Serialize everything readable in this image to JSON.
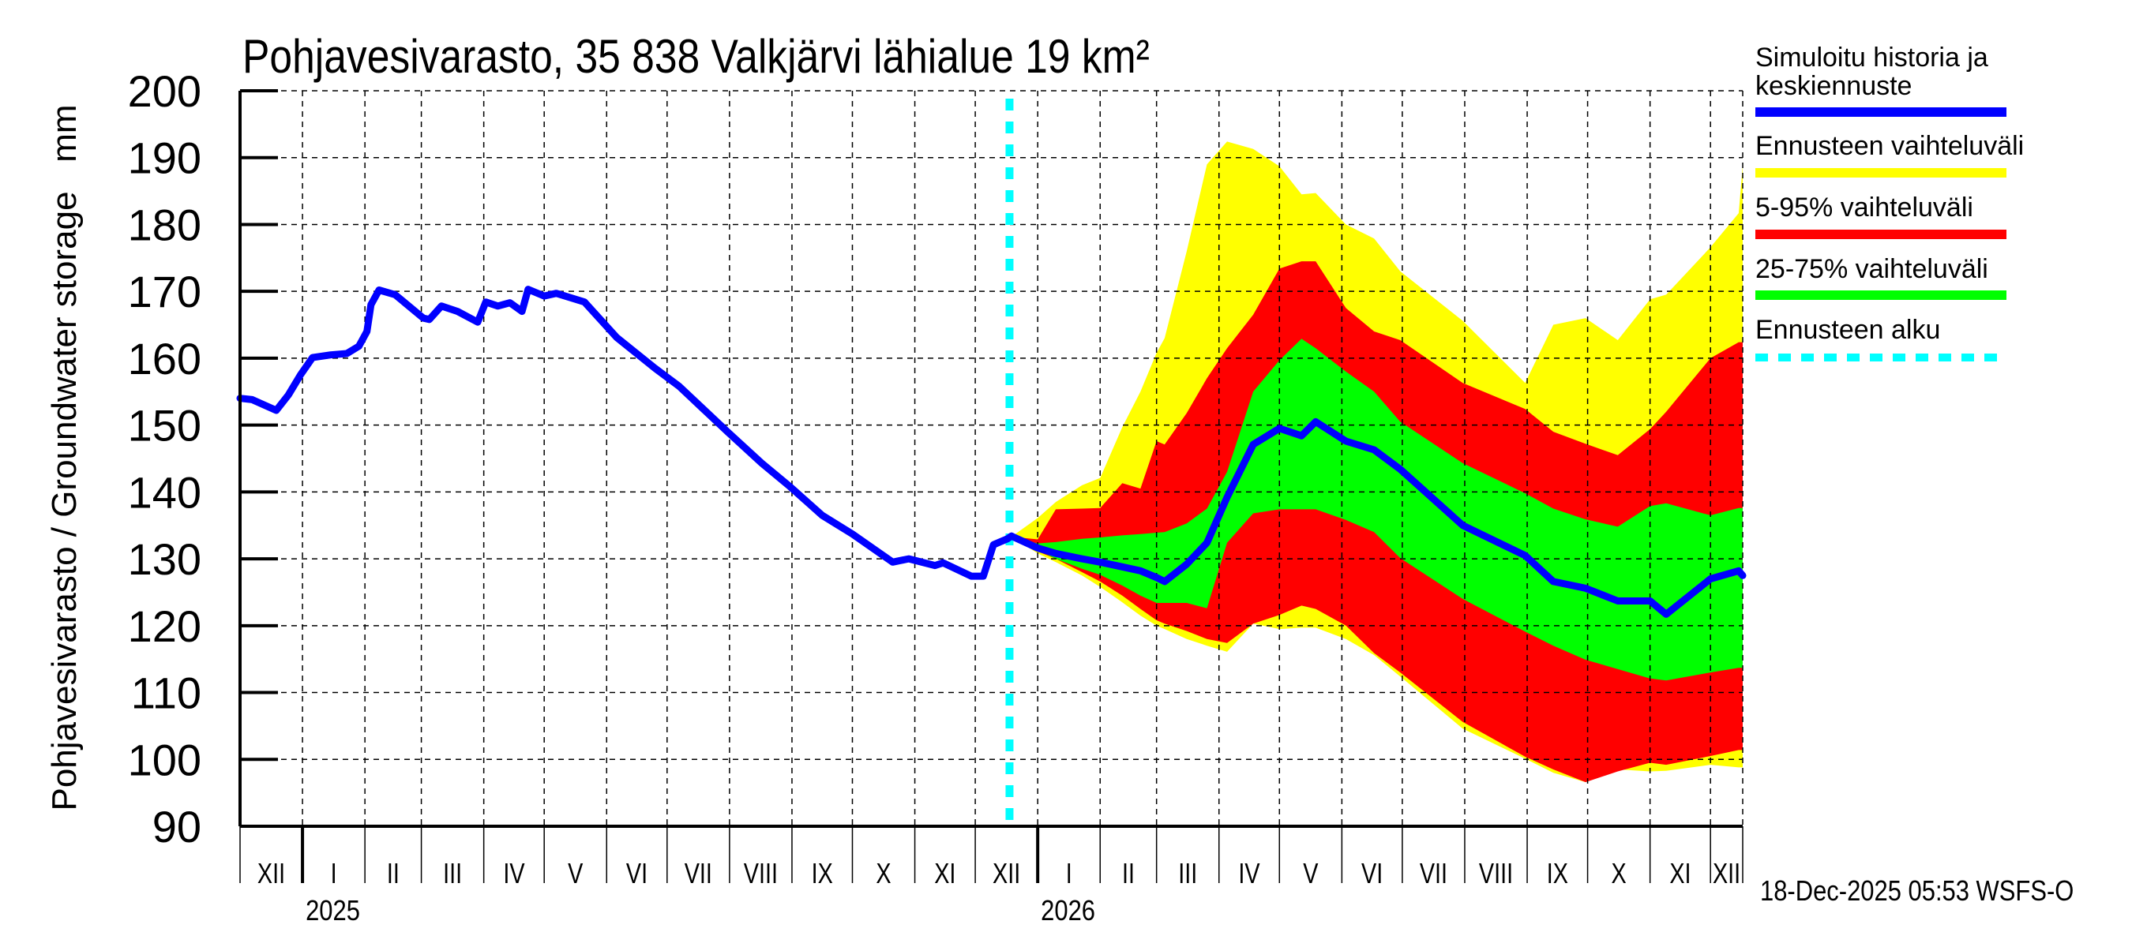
{
  "chart_data": {
    "type": "area",
    "title": "Pohjavesivarasto, 35 838 Valkjärvi lähialue 19 km²",
    "ylabel": "Pohjavesivarasto / Groundwater storage   mm",
    "xlabel": "",
    "ylim": [
      90,
      200
    ],
    "yticks": [
      90,
      100,
      110,
      120,
      130,
      140,
      150,
      160,
      170,
      180,
      190,
      200
    ],
    "xlim": [
      "2024-12-01",
      "2026-12-17"
    ],
    "grid": true,
    "months": [
      {
        "label": "XII",
        "start": "2024-12-01"
      },
      {
        "label": "I",
        "start": "2025-01-01"
      },
      {
        "label": "II",
        "start": "2025-02-01"
      },
      {
        "label": "III",
        "start": "2025-03-01"
      },
      {
        "label": "IV",
        "start": "2025-04-01"
      },
      {
        "label": "V",
        "start": "2025-05-01"
      },
      {
        "label": "VI",
        "start": "2025-06-01"
      },
      {
        "label": "VII",
        "start": "2025-07-01"
      },
      {
        "label": "VIII",
        "start": "2025-08-01"
      },
      {
        "label": "IX",
        "start": "2025-09-01"
      },
      {
        "label": "X",
        "start": "2025-10-01"
      },
      {
        "label": "XI",
        "start": "2025-11-01"
      },
      {
        "label": "XII",
        "start": "2025-12-01"
      },
      {
        "label": "I",
        "start": "2026-01-01"
      },
      {
        "label": "II",
        "start": "2026-02-01"
      },
      {
        "label": "III",
        "start": "2026-03-01"
      },
      {
        "label": "IV",
        "start": "2026-04-01"
      },
      {
        "label": "V",
        "start": "2026-05-01"
      },
      {
        "label": "VI",
        "start": "2026-06-01"
      },
      {
        "label": "VII",
        "start": "2026-07-01"
      },
      {
        "label": "VIII",
        "start": "2026-08-01"
      },
      {
        "label": "IX",
        "start": "2026-09-01"
      },
      {
        "label": "X",
        "start": "2026-10-01"
      },
      {
        "label": "XI",
        "start": "2026-11-01"
      },
      {
        "label": "XII",
        "start": "2026-12-01"
      }
    ],
    "years": [
      {
        "label": "2025",
        "start": "2025-01-01"
      },
      {
        "label": "2026",
        "start": "2026-01-01"
      }
    ],
    "forecast_start": "2025-12-18",
    "history": {
      "name": "Simuloitu historia ja keskiennuste",
      "color": "#0000ff",
      "dates": [
        "2024-12-01",
        "2024-12-07",
        "2024-12-19",
        "2024-12-25",
        "2024-12-31",
        "2025-01-06",
        "2025-01-15",
        "2025-01-23",
        "2025-01-29",
        "2025-02-02",
        "2025-02-04",
        "2025-02-08",
        "2025-02-16",
        "2025-03-02",
        "2025-03-05",
        "2025-03-11",
        "2025-03-19",
        "2025-03-29",
        "2025-04-02",
        "2025-04-08",
        "2025-04-14",
        "2025-04-20",
        "2025-04-23",
        "2025-05-01",
        "2025-05-07",
        "2025-05-21",
        "2025-06-06",
        "2025-06-25",
        "2025-07-07",
        "2025-07-31",
        "2025-08-17",
        "2025-08-31",
        "2025-09-16",
        "2025-10-01",
        "2025-10-21",
        "2025-10-29",
        "2025-11-11",
        "2025-11-15",
        "2025-11-29",
        "2025-12-05",
        "2025-12-10",
        "2025-12-17",
        "2025-12-19"
      ],
      "values": [
        154.0,
        153.8,
        152.2,
        154.5,
        157.5,
        160.1,
        160.5,
        160.7,
        161.8,
        164.0,
        168.0,
        170.2,
        169.5,
        166.0,
        165.8,
        167.8,
        167.0,
        165.4,
        168.4,
        167.8,
        168.3,
        167.0,
        170.3,
        169.3,
        169.7,
        168.4,
        163.1,
        158.5,
        155.8,
        149.0,
        144.3,
        140.8,
        136.5,
        133.7,
        129.5,
        130.0,
        129.0,
        129.4,
        127.4,
        127.4,
        132.1,
        133.0,
        133.4
      ]
    },
    "forecast": {
      "dates": [
        "2025-12-19",
        "2026-01-01",
        "2026-01-10",
        "2026-01-23",
        "2026-02-01",
        "2026-02-12",
        "2026-02-21",
        "2026-03-01",
        "2026-03-05",
        "2026-03-16",
        "2026-03-26",
        "2026-04-05",
        "2026-04-18",
        "2026-05-01",
        "2026-05-12",
        "2026-05-19",
        "2026-06-03",
        "2026-06-17",
        "2026-06-30",
        "2026-07-31",
        "2026-08-31",
        "2026-09-14",
        "2026-09-30",
        "2026-10-16",
        "2026-11-01",
        "2026-11-09",
        "2026-12-01",
        "2026-12-15",
        "2026-12-17"
      ],
      "median": [
        133.4,
        131.6,
        130.8,
        130.0,
        129.5,
        128.8,
        128.2,
        127.2,
        126.6,
        129.2,
        132.4,
        139.2,
        147.1,
        149.5,
        148.4,
        150.5,
        147.6,
        146.3,
        143.4,
        135.0,
        130.5,
        126.6,
        125.6,
        123.7,
        123.7,
        121.7,
        127.0,
        128.2,
        127.5
      ],
      "range_min_max": {
        "name": "Ennusteen vaihteluväli",
        "color": "#ffff00",
        "upper": [
          133.3,
          136.1,
          138.5,
          141.0,
          142.1,
          149.7,
          155.0,
          160.8,
          163.0,
          176.0,
          189.0,
          192.4,
          191.3,
          188.7,
          184.5,
          184.7,
          180.0,
          177.9,
          173.0,
          165.6,
          156.3,
          165.0,
          166.0,
          162.7,
          168.8,
          169.5,
          176.6,
          181.7,
          188.8
        ],
        "lower": [
          133.3,
          130.8,
          129.5,
          127.5,
          125.8,
          123.5,
          121.5,
          120.0,
          119.5,
          118.0,
          117.0,
          116.1,
          120.3,
          119.5,
          119.7,
          119.7,
          118.0,
          115.6,
          112.4,
          104.6,
          100.1,
          98.0,
          96.6,
          98.5,
          98.2,
          98.3,
          99.2,
          98.8,
          98.8
        ]
      },
      "range_5_95": {
        "name": "5-95% vaihteluväli",
        "color": "#ff0000",
        "upper": [
          133.3,
          132.9,
          137.4,
          137.5,
          137.6,
          141.3,
          140.5,
          147.6,
          147.1,
          151.8,
          157.0,
          161.5,
          166.5,
          173.4,
          174.5,
          174.5,
          167.5,
          164.0,
          162.7,
          156.3,
          152.4,
          149.0,
          147.2,
          145.5,
          149.4,
          152.0,
          160.0,
          162.4,
          162.4
        ],
        "lower": [
          133.3,
          131.1,
          130.0,
          128.0,
          126.6,
          124.5,
          122.5,
          120.8,
          120.3,
          119.2,
          118.0,
          117.4,
          120.3,
          121.6,
          123.0,
          122.5,
          120.0,
          115.9,
          113.0,
          105.6,
          100.4,
          98.5,
          96.6,
          98.2,
          99.5,
          99.2,
          100.5,
          101.4,
          101.4
        ]
      },
      "range_25_75": {
        "name": "25-75% vaihteluväli",
        "color": "#00ff00",
        "upper": [
          133.3,
          132.3,
          132.5,
          133.0,
          133.2,
          133.5,
          133.7,
          133.9,
          134.0,
          135.3,
          137.5,
          143.0,
          155.0,
          159.7,
          162.9,
          161.5,
          158.0,
          155.0,
          150.5,
          144.3,
          139.8,
          137.5,
          135.9,
          134.8,
          137.9,
          138.3,
          136.5,
          137.6,
          137.6
        ],
        "lower": [
          133.3,
          131.3,
          130.0,
          128.5,
          127.6,
          126.0,
          124.5,
          123.4,
          123.4,
          123.4,
          122.6,
          132.4,
          136.8,
          137.4,
          137.4,
          137.4,
          135.8,
          134.0,
          130.1,
          124.0,
          119.1,
          117.0,
          114.9,
          113.5,
          112.1,
          111.8,
          113.0,
          113.7,
          113.7
        ]
      }
    },
    "legend": {
      "placement": "right",
      "items": [
        {
          "label_lines": [
            "Simuloitu historia ja",
            "keskiennuste"
          ],
          "color": "#0000ff",
          "style": "solid"
        },
        {
          "label_lines": [
            "Ennusteen vaihteluväli"
          ],
          "color": "#ffff00",
          "style": "solid"
        },
        {
          "label_lines": [
            "5-95% vaihteluväli"
          ],
          "color": "#ff0000",
          "style": "solid"
        },
        {
          "label_lines": [
            "25-75% vaihteluväli"
          ],
          "color": "#00ff00",
          "style": "solid"
        },
        {
          "label_lines": [
            "Ennusteen alku"
          ],
          "color": "#00ffff",
          "style": "dashed"
        }
      ]
    },
    "footer": "18-Dec-2025 05:53 WSFS-O"
  }
}
